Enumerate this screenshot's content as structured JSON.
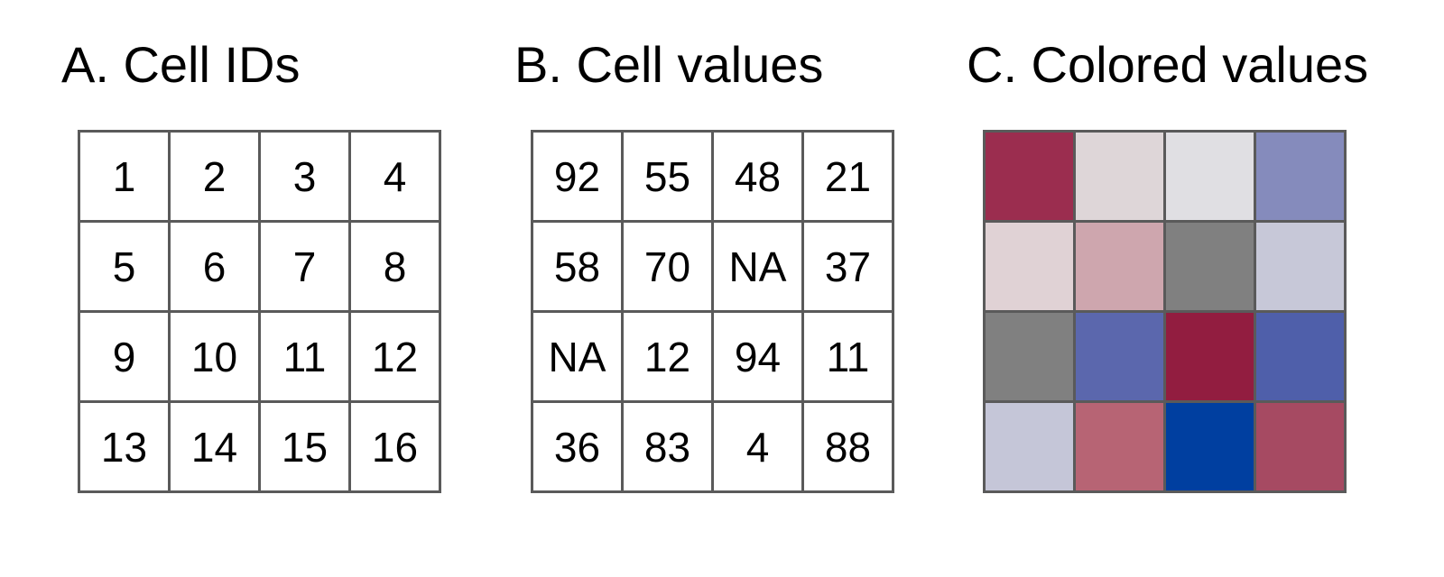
{
  "panels": {
    "ids": {
      "title": "A. Cell IDs",
      "cells": [
        "1",
        "2",
        "3",
        "4",
        "5",
        "6",
        "7",
        "8",
        "9",
        "10",
        "11",
        "12",
        "13",
        "14",
        "15",
        "16"
      ]
    },
    "values": {
      "title": "B. Cell values",
      "cells": [
        "92",
        "55",
        "48",
        "21",
        "58",
        "70",
        "NA",
        "37",
        "NA",
        "12",
        "94",
        "11",
        "36",
        "83",
        "4",
        "88"
      ]
    },
    "colored": {
      "title": "C. Colored values",
      "colors": [
        "#9b2d4f",
        "#ded6d8",
        "#e0dfe3",
        "#858bbc",
        "#e0d2d5",
        "#cea6ae",
        "#808080",
        "#c7c8d8",
        "#808080",
        "#5b67ad",
        "#921d40",
        "#4f5faa",
        "#c5c6d8",
        "#b76474",
        "#003fa0",
        "#a64a62"
      ]
    }
  }
}
